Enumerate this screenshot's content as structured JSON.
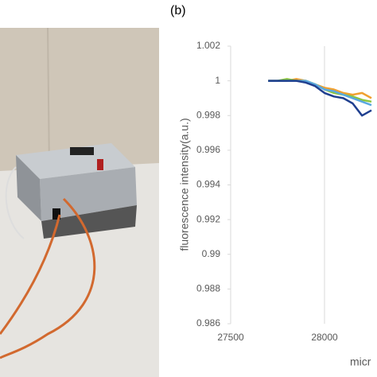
{
  "chart_data": {
    "type": "line",
    "panel_label": "(b)",
    "y_label": "fluorescence intensity(a.u.)",
    "x_label": "micr",
    "x": [
      27700,
      27750,
      27800,
      27850,
      27900,
      27950,
      28000,
      28050,
      28100,
      28150,
      28200,
      28250
    ],
    "series": [
      {
        "color": "#f0a030",
        "values": [
          1,
          1,
          1,
          1.0001,
          1,
          0.9998,
          0.9996,
          0.9995,
          0.9993,
          0.9992,
          0.9993,
          0.999
        ]
      },
      {
        "color": "#8dc63f",
        "values": [
          1,
          1,
          1.0001,
          1,
          1,
          0.9998,
          0.9995,
          0.9993,
          0.9992,
          0.9991,
          0.9989,
          0.9988
        ]
      },
      {
        "color": "#5aa9e0",
        "values": [
          1,
          1,
          1,
          1,
          1,
          0.9998,
          0.9995,
          0.9994,
          0.9992,
          0.999,
          0.9988,
          0.9986
        ]
      },
      {
        "color": "#1f3f8f",
        "values": [
          1,
          1,
          1,
          1,
          0.9999,
          0.9997,
          0.9993,
          0.9991,
          0.999,
          0.9987,
          0.998,
          0.9983
        ]
      }
    ],
    "xlim": [
      27500,
      28500
    ],
    "ylim": [
      0.986,
      1.002
    ],
    "xticks": [
      27500,
      28000
    ],
    "yticks": [
      0.986,
      0.988,
      0.99,
      0.992,
      0.994,
      0.996,
      0.998,
      1,
      1.002
    ],
    "grid": true
  }
}
